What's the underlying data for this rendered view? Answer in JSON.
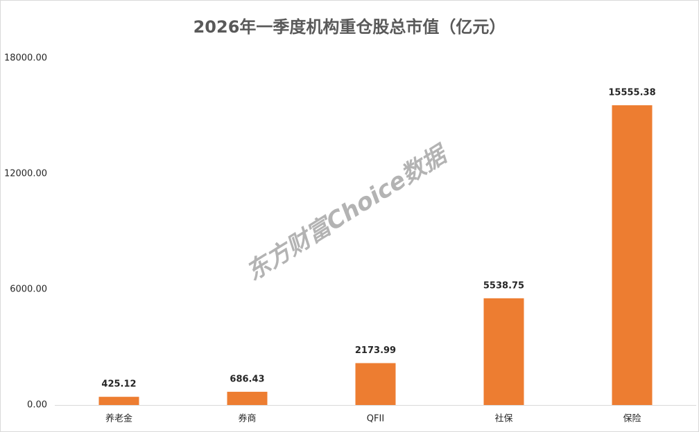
{
  "chart_data": {
    "type": "bar",
    "title": "2026年一季度机构重仓股总市值（亿元）",
    "watermark": "东方财富Choice数据",
    "categories": [
      "养老金",
      "券商",
      "QFII",
      "社保",
      "保险"
    ],
    "values": [
      425.12,
      686.43,
      2173.99,
      5538.75,
      15555.38
    ],
    "color": "#ed7d31",
    "ylim": [
      0,
      18000
    ],
    "yticks": [
      {
        "value": 0,
        "label": "0.00"
      },
      {
        "value": 6000,
        "label": "6000.00"
      },
      {
        "value": 12000,
        "label": "12000.00"
      },
      {
        "value": 18000,
        "label": "18000.00"
      }
    ],
    "grid": false
  }
}
